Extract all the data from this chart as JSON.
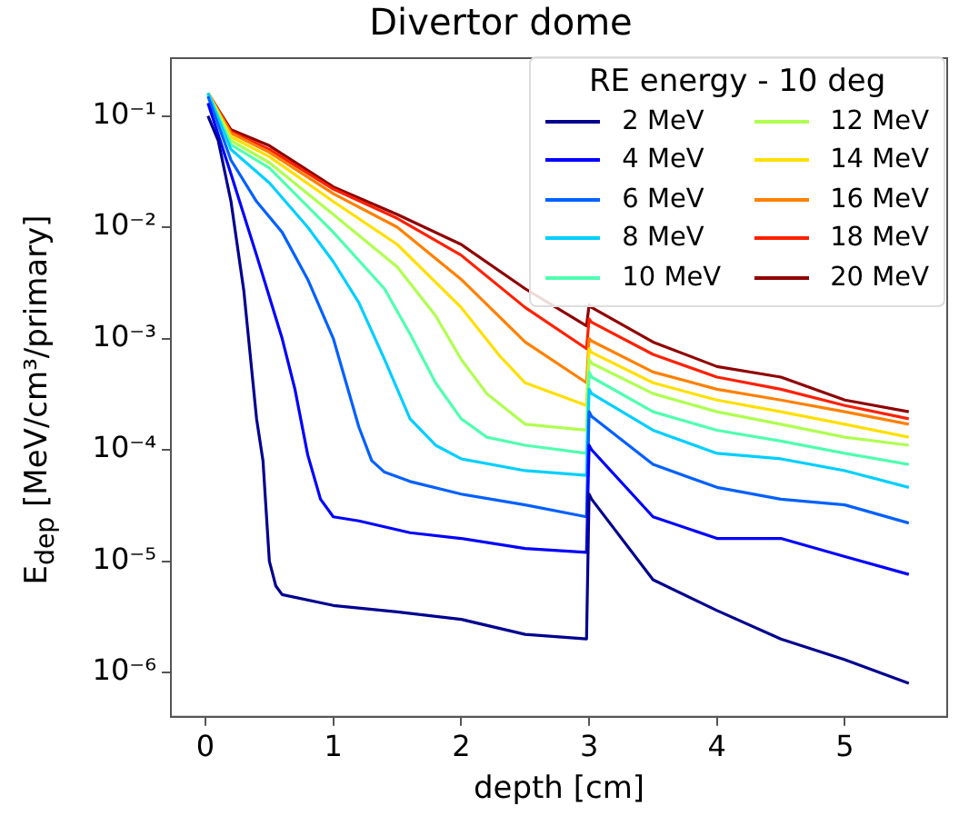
{
  "chart_data": {
    "type": "line",
    "title": "Divertor dome",
    "xlabel": "depth [cm]",
    "ylabel": "E$_{dep}$ [MeV/cm³/primary]",
    "legend_title": "RE energy - 10 deg",
    "log": "y",
    "grid": false,
    "legend": "top right",
    "marker": "none",
    "line_style": "solid",
    "xlim": [
      -0.27,
      5.8
    ],
    "xticks": [
      0,
      1,
      2,
      3,
      4,
      5
    ],
    "ylim": [
      4e-07,
      0.33
    ],
    "yticks": [
      {
        "value": 1e-06,
        "label": "10⁻⁶"
      },
      {
        "value": 1e-05,
        "label": "10⁻⁵"
      },
      {
        "value": 0.0001,
        "label": "10⁻⁴"
      },
      {
        "value": 0.001,
        "label": "10⁻³"
      },
      {
        "value": 0.01,
        "label": "10⁻²"
      },
      {
        "value": 0.1,
        "label": "10⁻¹"
      }
    ],
    "series": [
      {
        "name": "2 MeV",
        "color": "#00008f",
        "x": [
          0.02,
          0.1,
          0.2,
          0.3,
          0.4,
          0.45,
          0.5,
          0.55,
          0.6,
          1.0,
          1.5,
          2.0,
          2.5,
          2.98,
          3.0,
          3.02,
          3.5,
          4.0,
          4.5,
          5.0,
          5.5
        ],
        "values": [
          0.1,
          0.06,
          0.017,
          0.0027,
          0.00019,
          8e-05,
          1e-05,
          6e-06,
          5e-06,
          4e-06,
          3.5e-06,
          3e-06,
          2.2e-06,
          2e-06,
          4e-05,
          3.6e-05,
          6.8e-06,
          3.6e-06,
          2e-06,
          1.3e-06,
          8e-07
        ]
      },
      {
        "name": "4 MeV",
        "color": "#0000ff",
        "x": [
          0.02,
          0.2,
          0.4,
          0.6,
          0.7,
          0.8,
          0.9,
          1.0,
          1.2,
          1.6,
          2.0,
          2.5,
          2.98,
          3.0,
          3.02,
          3.5,
          4.0,
          4.5,
          5.0,
          5.5
        ],
        "values": [
          0.13,
          0.03,
          0.0056,
          0.001,
          0.00035,
          9e-05,
          3.6e-05,
          2.5e-05,
          2.3e-05,
          1.8e-05,
          1.6e-05,
          1.3e-05,
          1.2e-05,
          0.00011,
          0.0001,
          2.5e-05,
          1.6e-05,
          1.6e-05,
          1.1e-05,
          7.6e-06
        ]
      },
      {
        "name": "6 MeV",
        "color": "#0060ff",
        "x": [
          0.02,
          0.2,
          0.4,
          0.6,
          0.8,
          1.0,
          1.1,
          1.2,
          1.3,
          1.4,
          1.6,
          2.0,
          2.5,
          2.98,
          3.0,
          3.02,
          3.5,
          4.0,
          4.5,
          5.0,
          5.5
        ],
        "values": [
          0.15,
          0.04,
          0.017,
          0.009,
          0.0034,
          0.001,
          0.0004,
          0.00016,
          8e-05,
          6.3e-05,
          5.2e-05,
          4e-05,
          3.2e-05,
          2.5e-05,
          0.00022,
          0.0002,
          7.4e-05,
          4.6e-05,
          3.6e-05,
          3.2e-05,
          2.2e-05
        ]
      },
      {
        "name": "8 MeV",
        "color": "#00cfff",
        "x": [
          0.02,
          0.2,
          0.5,
          0.8,
          1.0,
          1.2,
          1.4,
          1.6,
          1.8,
          2.0,
          2.5,
          2.98,
          3.0,
          3.02,
          3.5,
          4.0,
          4.5,
          5.0,
          5.5
        ],
        "values": [
          0.16,
          0.05,
          0.025,
          0.01,
          0.0049,
          0.0021,
          0.00065,
          0.00019,
          0.00011,
          8.3e-05,
          6.5e-05,
          5.9e-05,
          0.00035,
          0.00032,
          0.00015,
          9.3e-05,
          8.3e-05,
          6.5e-05,
          4.6e-05
        ]
      },
      {
        "name": "10 MeV",
        "color": "#4fffaf",
        "x": [
          0.02,
          0.2,
          0.5,
          1.0,
          1.4,
          1.6,
          1.8,
          2.0,
          2.2,
          2.5,
          2.98,
          3.0,
          3.02,
          3.5,
          4.0,
          4.5,
          5.0,
          5.5
        ],
        "values": [
          0.16,
          0.055,
          0.034,
          0.009,
          0.0028,
          0.0011,
          0.0004,
          0.00019,
          0.00013,
          0.00011,
          9.3e-05,
          0.0005,
          0.00045,
          0.00022,
          0.00015,
          0.00012,
          9.3e-05,
          7.4e-05
        ]
      },
      {
        "name": "12 MeV",
        "color": "#afff4f",
        "x": [
          0.02,
          0.2,
          0.5,
          1.0,
          1.5,
          1.8,
          2.0,
          2.2,
          2.5,
          2.98,
          3.0,
          3.02,
          3.5,
          4.0,
          4.5,
          5.0,
          5.5
        ],
        "values": [
          0.16,
          0.06,
          0.038,
          0.013,
          0.0044,
          0.0016,
          0.00065,
          0.00032,
          0.00017,
          0.00015,
          0.00065,
          0.0006,
          0.00032,
          0.00022,
          0.00017,
          0.00013,
          0.00011
        ]
      },
      {
        "name": "14 MeV",
        "color": "#ffdf00",
        "x": [
          0.02,
          0.2,
          0.5,
          1.0,
          1.5,
          2.0,
          2.3,
          2.5,
          2.98,
          3.0,
          3.02,
          3.5,
          4.0,
          4.5,
          5.0,
          5.5
        ],
        "values": [
          0.16,
          0.065,
          0.043,
          0.017,
          0.007,
          0.0019,
          0.0007,
          0.0004,
          0.00025,
          0.00081,
          0.00075,
          0.0004,
          0.00028,
          0.00022,
          0.00017,
          0.00013
        ]
      },
      {
        "name": "16 MeV",
        "color": "#ff8000",
        "x": [
          0.02,
          0.2,
          0.5,
          1.0,
          1.5,
          2.0,
          2.5,
          2.98,
          3.0,
          3.02,
          3.5,
          4.0,
          4.5,
          5.0,
          5.5
        ],
        "values": [
          0.16,
          0.07,
          0.047,
          0.02,
          0.01,
          0.0034,
          0.00093,
          0.0004,
          0.001,
          0.00095,
          0.0005,
          0.00035,
          0.00028,
          0.00022,
          0.00017
        ]
      },
      {
        "name": "18 MeV",
        "color": "#ff2000",
        "x": [
          0.02,
          0.2,
          0.5,
          1.0,
          1.5,
          2.0,
          2.5,
          2.98,
          3.0,
          3.02,
          3.5,
          4.0,
          4.5,
          5.0,
          5.5
        ],
        "values": [
          0.16,
          0.072,
          0.05,
          0.022,
          0.012,
          0.0056,
          0.0019,
          0.00081,
          0.0015,
          0.0014,
          0.00072,
          0.00045,
          0.00035,
          0.00025,
          0.00019
        ]
      },
      {
        "name": "20 MeV",
        "color": "#8f0000",
        "x": [
          0.02,
          0.2,
          0.5,
          1.0,
          1.5,
          2.0,
          2.5,
          2.98,
          3.0,
          3.02,
          3.5,
          4.0,
          4.5,
          5.0,
          5.5
        ],
        "values": [
          0.16,
          0.075,
          0.054,
          0.023,
          0.013,
          0.007,
          0.0028,
          0.0013,
          0.002,
          0.0019,
          0.00093,
          0.00056,
          0.00045,
          0.00028,
          0.00022
        ]
      }
    ]
  }
}
